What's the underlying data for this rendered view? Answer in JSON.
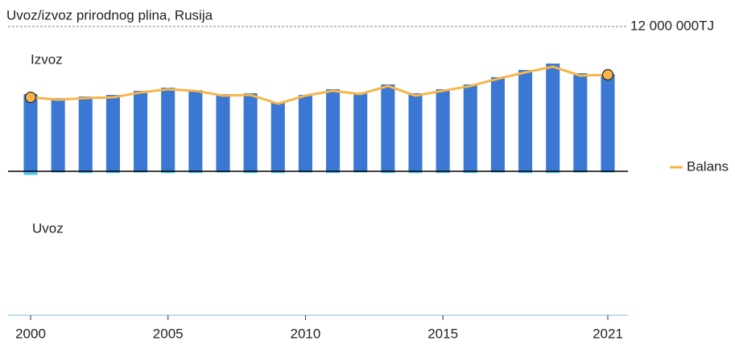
{
  "chart_data": {
    "type": "bar",
    "title": "Uvoz/izvoz prirodnog plina, Rusija",
    "x": [
      2000,
      2001,
      2002,
      2003,
      2004,
      2005,
      2006,
      2007,
      2008,
      2009,
      2010,
      2011,
      2012,
      2013,
      2014,
      2015,
      2016,
      2017,
      2018,
      2019,
      2020,
      2021
    ],
    "xlim": [
      2000,
      2021
    ],
    "xticks": [
      2000,
      2005,
      2010,
      2015,
      2021
    ],
    "ylim": [
      -12000000,
      12000000
    ],
    "yticks": [
      {
        "value": 12000000,
        "label": "12 000 000TJ"
      }
    ],
    "legend": "right",
    "series": [
      {
        "name": "Izvoz",
        "type": "bar",
        "color": "#3a78d4",
        "values": [
          6400000,
          6070000,
          6200000,
          6330000,
          6670000,
          6930000,
          6730000,
          6400000,
          6470000,
          5730000,
          6330000,
          6800000,
          6530000,
          7200000,
          6470000,
          6800000,
          7200000,
          7800000,
          8400000,
          8930000,
          8130000,
          8070000
        ]
      },
      {
        "name": "Uvoz",
        "type": "bar",
        "color": "#4cc3ea",
        "values": [
          -300000,
          -100000,
          -150000,
          -150000,
          -100000,
          -150000,
          -150000,
          -100000,
          -150000,
          -150000,
          -100000,
          -150000,
          -100000,
          -150000,
          -150000,
          -150000,
          -150000,
          -100000,
          -150000,
          -150000,
          -100000,
          -100000
        ]
      },
      {
        "name": "Balans",
        "type": "line",
        "color": "#f7b548",
        "values": [
          6130000,
          5930000,
          6070000,
          6130000,
          6530000,
          6800000,
          6670000,
          6270000,
          6330000,
          5600000,
          6270000,
          6670000,
          6400000,
          7070000,
          6270000,
          6670000,
          7070000,
          7670000,
          8200000,
          8670000,
          7930000,
          8000000
        ]
      }
    ]
  }
}
